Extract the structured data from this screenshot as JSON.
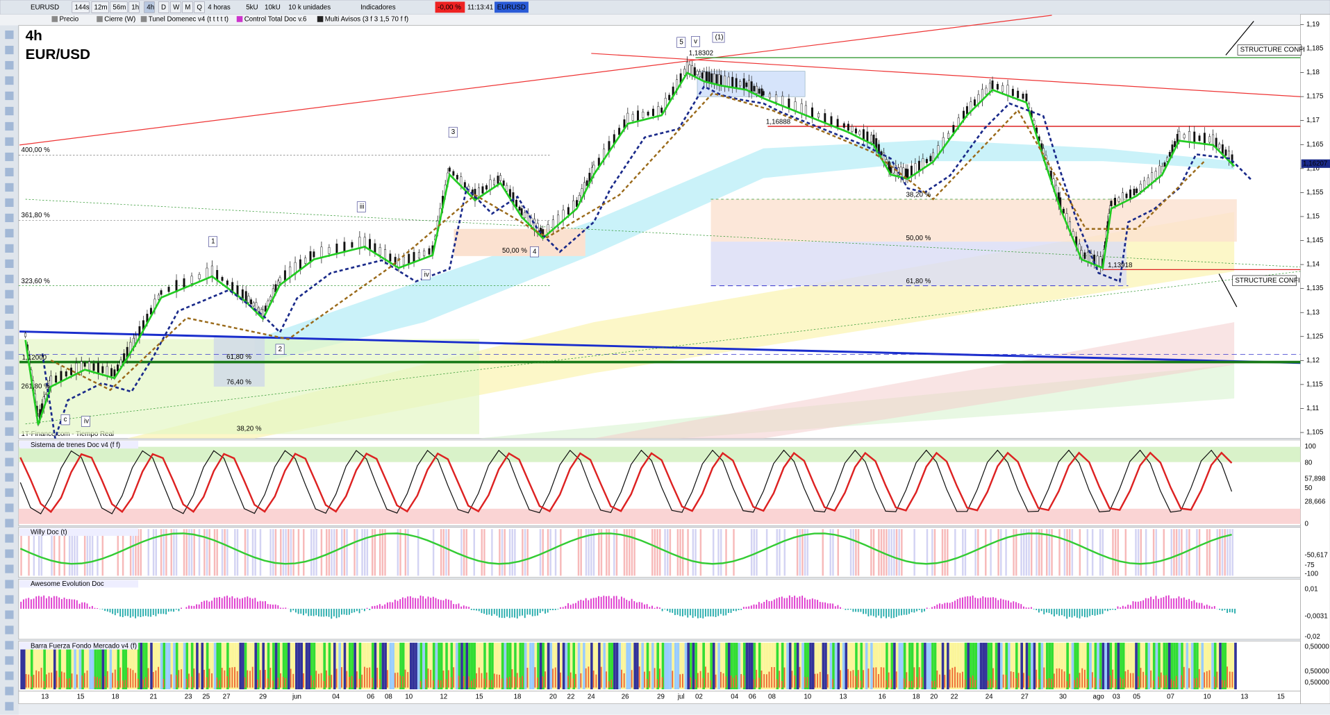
{
  "toolbar": {
    "symbol": "EURUSD",
    "timeframes": [
      "144s",
      "12m",
      "56m",
      "1h",
      "4h",
      "D",
      "W",
      "M",
      "Q"
    ],
    "period": "4 horas",
    "units": [
      "5kU",
      "10kU"
    ],
    "size": "10 k unidades",
    "indicators": "Indicadores",
    "change": "-0,00 %",
    "time": "11:13:41",
    "symbol_tag": "EURUSD"
  },
  "legend": [
    "Precio",
    "Cierre (W)",
    "Tunel Domenec v4 (t t t t t)",
    "Control Total Doc v.6",
    "Multi Avisos (3 f 3 1,5 70 f f)"
  ],
  "chart": {
    "timeframe": "4h",
    "pair": "EUR/USD",
    "source": "1T-Finance.com - Tiempo Real",
    "annotations": [
      "1,18302",
      "STRUCTURE CONFI",
      "STRUCTURE CONFI",
      "400,00 %",
      "361,80 %",
      "323,60 %",
      "261,80 %",
      "1,12000",
      "38,20 %",
      "50,00 %",
      "61,80 %",
      "1,16888",
      "1,13918",
      "38,20 %",
      "50,00 %",
      "61,80 %",
      "76,40 %"
    ],
    "wave_labels": [
      "5",
      "v",
      "(1)",
      "3",
      "1",
      "iii",
      "iv",
      "2",
      "4",
      "c",
      "iv"
    ],
    "price_axis": [
      "1,19",
      "1,185",
      "1,18",
      "1,175",
      "1,17",
      "1,165",
      "1,16",
      "1,155",
      "1,15",
      "1,145",
      "1,14",
      "1,135",
      "1,13",
      "1,125",
      "1,12",
      "1,115",
      "1,11",
      "1,105"
    ],
    "price_tag": "1,16207"
  },
  "dates": [
    "13",
    "15",
    "18",
    "21",
    "23",
    "25",
    "27",
    "29",
    "jun",
    "04",
    "06",
    "08",
    "10",
    "12",
    "15",
    "18",
    "20",
    "22",
    "24",
    "26",
    "29",
    "jul",
    "02",
    "04",
    "06",
    "08",
    "10",
    "13",
    "16",
    "18",
    "20",
    "22",
    "24",
    "27",
    "30",
    "ago",
    "03",
    "05",
    "07",
    "10",
    "13",
    "15"
  ],
  "panels": [
    {
      "title": "Sistema de trenes Doc v4 (f f)",
      "axis": [
        "100",
        "80",
        "57,898",
        "50",
        "28,666",
        "0"
      ]
    },
    {
      "title": "Willy Doc (t)",
      "axis": [
        "-50,617",
        "-75",
        "-100"
      ]
    },
    {
      "title": "Awesome Evolution Doc",
      "axis": [
        "0,01",
        "-0,0031",
        "-0,02"
      ]
    },
    {
      "title": "Barra Fuerza Fondo Mercado v4 (f)",
      "axis": [
        "0,50000",
        "0,50000",
        "0,50000"
      ]
    }
  ]
}
